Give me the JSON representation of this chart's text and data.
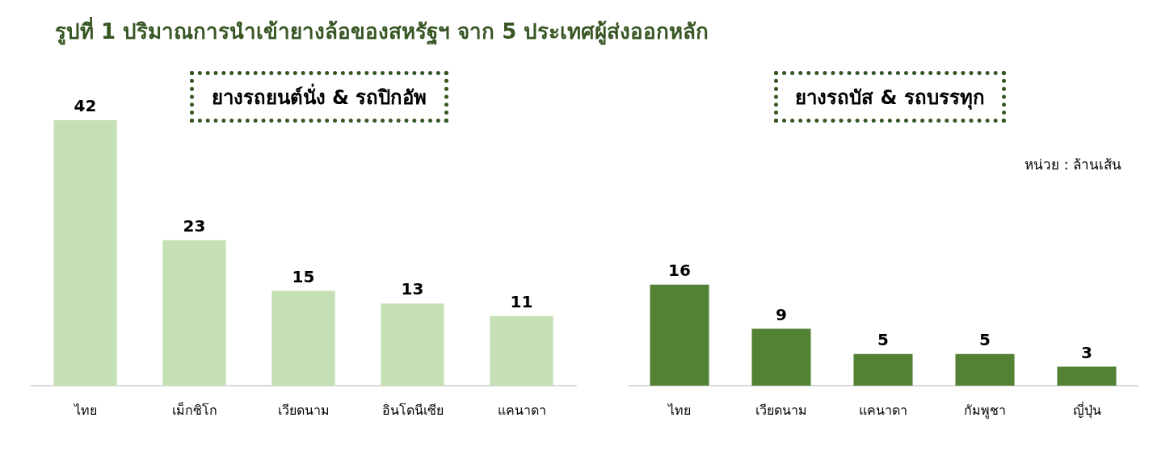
{
  "chart_data": [
    {
      "type": "bar",
      "title": "รูปที่ 1 ปริมาณการนำเข้ายางล้อของสหรัฐฯ จาก 5 ประเทศผู้ส่งออกหลัก",
      "subtitle": "ยางรถยนต์นั่ง & รถปิกอัพ",
      "categories": [
        "ไทย",
        "เม็กซิโก",
        "เวียดนาม",
        "อินโดนีเซีย",
        "แคนาดา"
      ],
      "values": [
        42,
        23,
        15,
        13,
        11
      ],
      "color": "#c5e0b4",
      "data_labels": true
    },
    {
      "type": "bar",
      "subtitle": "ยางรถบัส & รถบรรทุก",
      "annotations": [
        "หน่วย : ล้านเส้น"
      ],
      "categories": [
        "ไทย",
        "เวียดนาม",
        "แคนาดา",
        "กัมพูชา",
        "ญี่ปุ่น"
      ],
      "values": [
        16,
        9,
        5,
        5,
        3
      ],
      "color": "#548235",
      "data_labels": true
    }
  ]
}
